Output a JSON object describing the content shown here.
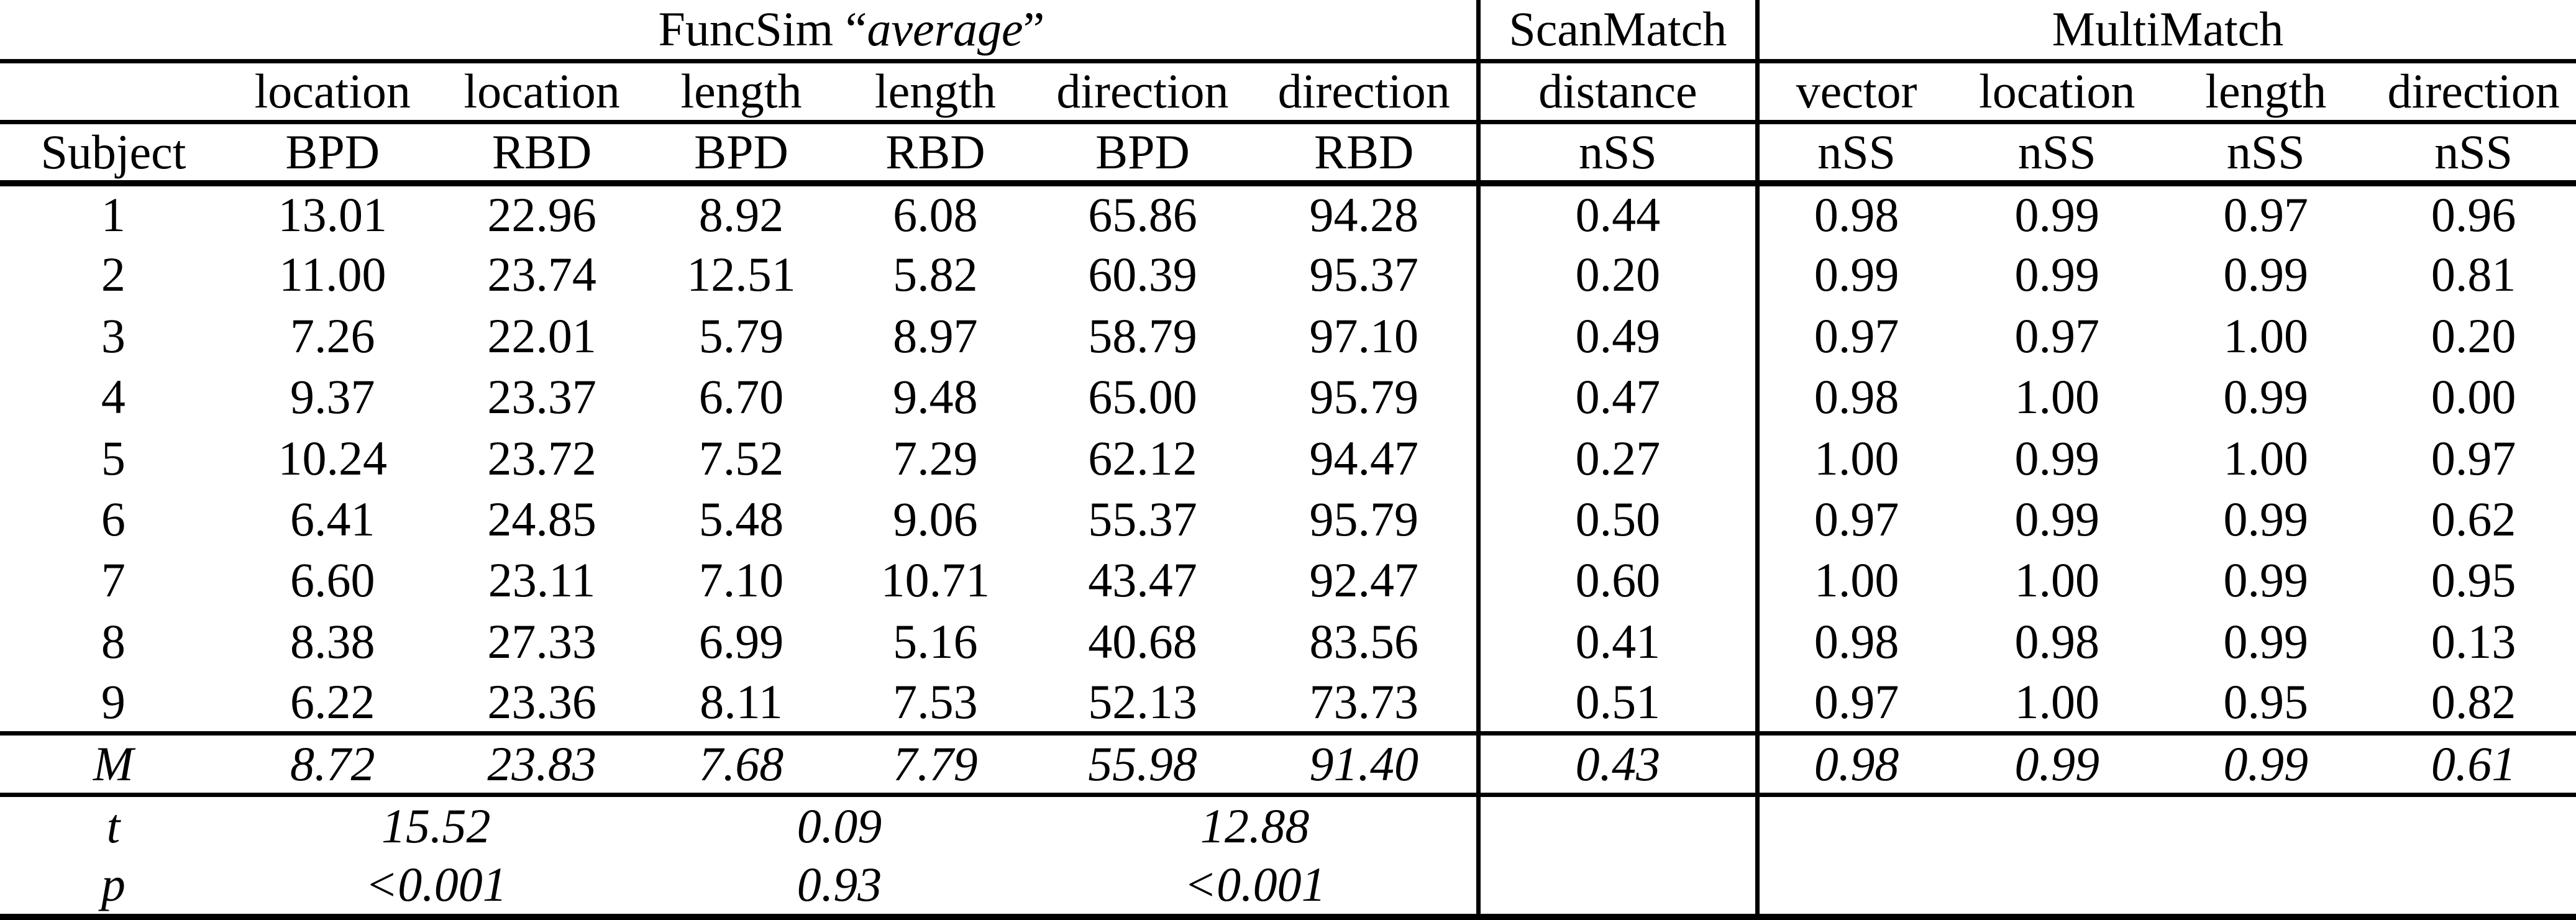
{
  "header": {
    "funcsim_prefix": "FuncSim “",
    "funcsim_italic": "average",
    "funcsim_suffix": "”",
    "scanmatch": "ScanMatch",
    "multimatch": "MultiMatch",
    "measures": [
      "",
      "location",
      "location",
      "length",
      "length",
      "direction",
      "direction",
      "distance",
      "vector",
      "location",
      "length",
      "direction"
    ],
    "units": [
      "Subject",
      "BPD",
      "RBD",
      "BPD",
      "RBD",
      "BPD",
      "RBD",
      "nSS",
      "nSS",
      "nSS",
      "nSS",
      "nSS"
    ]
  },
  "rows": [
    {
      "subject": "1",
      "values": [
        "13.01",
        "22.96",
        "8.92",
        "6.08",
        "65.86",
        "94.28",
        "0.44",
        "0.98",
        "0.99",
        "0.97",
        "0.96"
      ]
    },
    {
      "subject": "2",
      "values": [
        "11.00",
        "23.74",
        "12.51",
        "5.82",
        "60.39",
        "95.37",
        "0.20",
        "0.99",
        "0.99",
        "0.99",
        "0.81"
      ]
    },
    {
      "subject": "3",
      "values": [
        "7.26",
        "22.01",
        "5.79",
        "8.97",
        "58.79",
        "97.10",
        "0.49",
        "0.97",
        "0.97",
        "1.00",
        "0.20"
      ]
    },
    {
      "subject": "4",
      "values": [
        "9.37",
        "23.37",
        "6.70",
        "9.48",
        "65.00",
        "95.79",
        "0.47",
        "0.98",
        "1.00",
        "0.99",
        "0.00"
      ]
    },
    {
      "subject": "5",
      "values": [
        "10.24",
        "23.72",
        "7.52",
        "7.29",
        "62.12",
        "94.47",
        "0.27",
        "1.00",
        "0.99",
        "1.00",
        "0.97"
      ]
    },
    {
      "subject": "6",
      "values": [
        "6.41",
        "24.85",
        "5.48",
        "9.06",
        "55.37",
        "95.79",
        "0.50",
        "0.97",
        "0.99",
        "0.99",
        "0.62"
      ]
    },
    {
      "subject": "7",
      "values": [
        "6.60",
        "23.11",
        "7.10",
        "10.71",
        "43.47",
        "92.47",
        "0.60",
        "1.00",
        "1.00",
        "0.99",
        "0.95"
      ]
    },
    {
      "subject": "8",
      "values": [
        "8.38",
        "27.33",
        "6.99",
        "5.16",
        "40.68",
        "83.56",
        "0.41",
        "0.98",
        "0.98",
        "0.99",
        "0.13"
      ]
    },
    {
      "subject": "9",
      "values": [
        "6.22",
        "23.36",
        "8.11",
        "7.53",
        "52.13",
        "73.73",
        "0.51",
        "0.97",
        "1.00",
        "0.95",
        "0.82"
      ]
    }
  ],
  "mean_row": {
    "label": "M",
    "values": [
      "8.72",
      "23.83",
      "7.68",
      "7.79",
      "55.98",
      "91.40",
      "0.43",
      "0.98",
      "0.99",
      "0.99",
      "0.61"
    ]
  },
  "t_row": {
    "label": "t",
    "values": [
      "15.52",
      "0.09",
      "12.88"
    ]
  },
  "p_row": {
    "label": "p",
    "values": [
      "<0.001",
      "0.93",
      "<0.001"
    ]
  }
}
